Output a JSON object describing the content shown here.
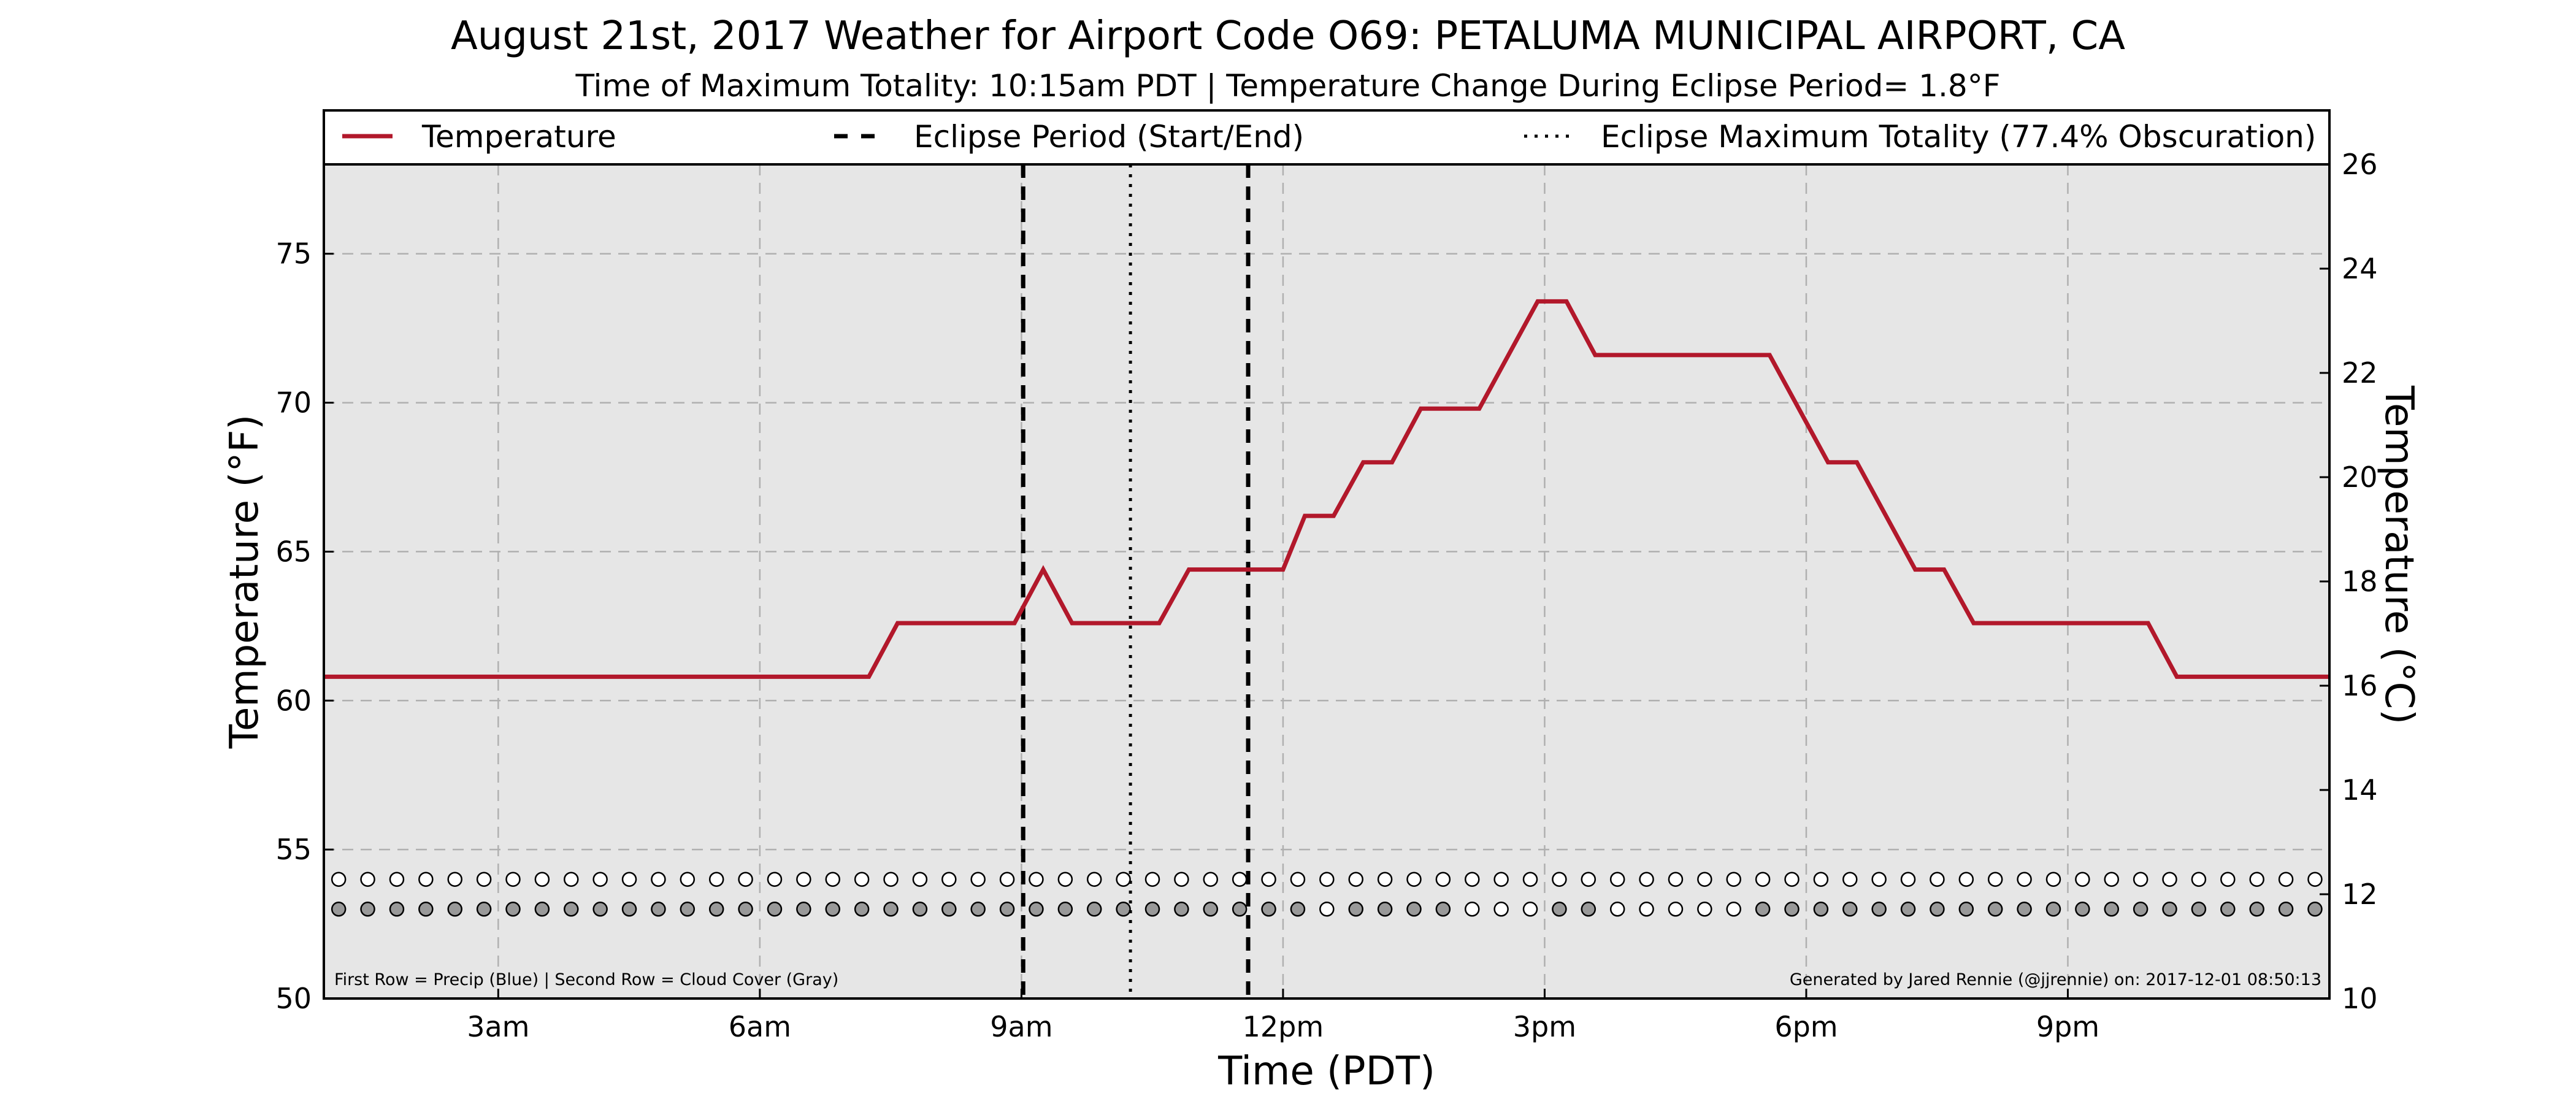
{
  "title": "August 21st, 2017 Weather for Airport Code O69: PETALUMA MUNICIPAL AIRPORT, CA",
  "subtitle": "Time of Maximum Totality: 10:15am PDT | Temperature Change During Eclipse Period= 1.8°F",
  "note_left": "First Row = Precip (Blue) | Second Row = Cloud Cover (Gray)",
  "note_right": "Generated by Jared Rennie (@jjrennie) on: 2017-12-01 08:50:13",
  "colors": {
    "temperature": "#b2182b",
    "plot_background": "#e6e6e6",
    "grid": "#b0b0b0",
    "cloud_filled": "#999999",
    "marker_empty": "#ffffff"
  },
  "chart_data": {
    "type": "line",
    "xlabel": "Time (PDT)",
    "ylabel_left": "Temperature (°F)",
    "ylabel_right": "Temperature (°C)",
    "xlim_hours": [
      1.0,
      24.0
    ],
    "ylim": [
      50,
      78
    ],
    "ylim_right": [
      10,
      26
    ],
    "x_ticks": [
      {
        "hour": 3,
        "label": "3am"
      },
      {
        "hour": 6,
        "label": "6am"
      },
      {
        "hour": 9,
        "label": "9am"
      },
      {
        "hour": 12,
        "label": "12pm"
      },
      {
        "hour": 15,
        "label": "3pm"
      },
      {
        "hour": 18,
        "label": "6pm"
      },
      {
        "hour": 21,
        "label": "9pm"
      }
    ],
    "y_ticks": [
      50,
      55,
      60,
      65,
      70,
      75
    ],
    "y_ticks_right": [
      10,
      12,
      14,
      16,
      18,
      20,
      22,
      24,
      26
    ],
    "grid": true,
    "legend": {
      "placement": "top",
      "entries": [
        {
          "label": "Temperature",
          "style": "solid"
        },
        {
          "label": "Eclipse Period (Start/End)",
          "style": "dashed"
        },
        {
          "label": "Eclipse Maximum Totality (77.4% Obscuration)",
          "style": "dotted"
        }
      ]
    },
    "eclipse_start_hour": 9.02,
    "eclipse_end_hour": 11.6,
    "eclipse_max_hour": 10.25,
    "series": [
      {
        "name": "Temperature",
        "points": [
          [
            1.0,
            60.8
          ],
          [
            7.25,
            60.8
          ],
          [
            7.58,
            62.6
          ],
          [
            8.92,
            62.6
          ],
          [
            9.25,
            64.4
          ],
          [
            9.58,
            62.6
          ],
          [
            10.58,
            62.6
          ],
          [
            10.92,
            64.4
          ],
          [
            12.0,
            64.4
          ],
          [
            12.25,
            66.2
          ],
          [
            12.58,
            66.2
          ],
          [
            12.92,
            68.0
          ],
          [
            13.25,
            68.0
          ],
          [
            13.58,
            69.8
          ],
          [
            14.25,
            69.8
          ],
          [
            14.92,
            73.4
          ],
          [
            15.25,
            73.4
          ],
          [
            15.58,
            71.6
          ],
          [
            17.58,
            71.6
          ],
          [
            18.25,
            68.0
          ],
          [
            18.58,
            68.0
          ],
          [
            19.25,
            64.4
          ],
          [
            19.58,
            64.4
          ],
          [
            19.92,
            62.6
          ],
          [
            21.92,
            62.6
          ],
          [
            22.25,
            60.8
          ],
          [
            24.0,
            60.8
          ]
        ]
      }
    ],
    "precip_row": {
      "y": 54.0,
      "start_hour": 1.17,
      "step_hours": 0.3333,
      "count": 69,
      "filled_indices": []
    },
    "cloud_row": {
      "y": 53.0,
      "start_hour": 1.17,
      "step_hours": 0.3333,
      "count": 69,
      "filled_indices": [
        0,
        1,
        2,
        3,
        4,
        5,
        6,
        7,
        8,
        9,
        10,
        11,
        12,
        13,
        14,
        15,
        16,
        17,
        18,
        19,
        20,
        21,
        22,
        23,
        24,
        25,
        26,
        27,
        28,
        29,
        30,
        31,
        32,
        33,
        35,
        36,
        37,
        38,
        42,
        43,
        49,
        50,
        51,
        52,
        53,
        54,
        55,
        56,
        57,
        58,
        59,
        60,
        61,
        62,
        63,
        64,
        65,
        66,
        67,
        68
      ]
    }
  }
}
